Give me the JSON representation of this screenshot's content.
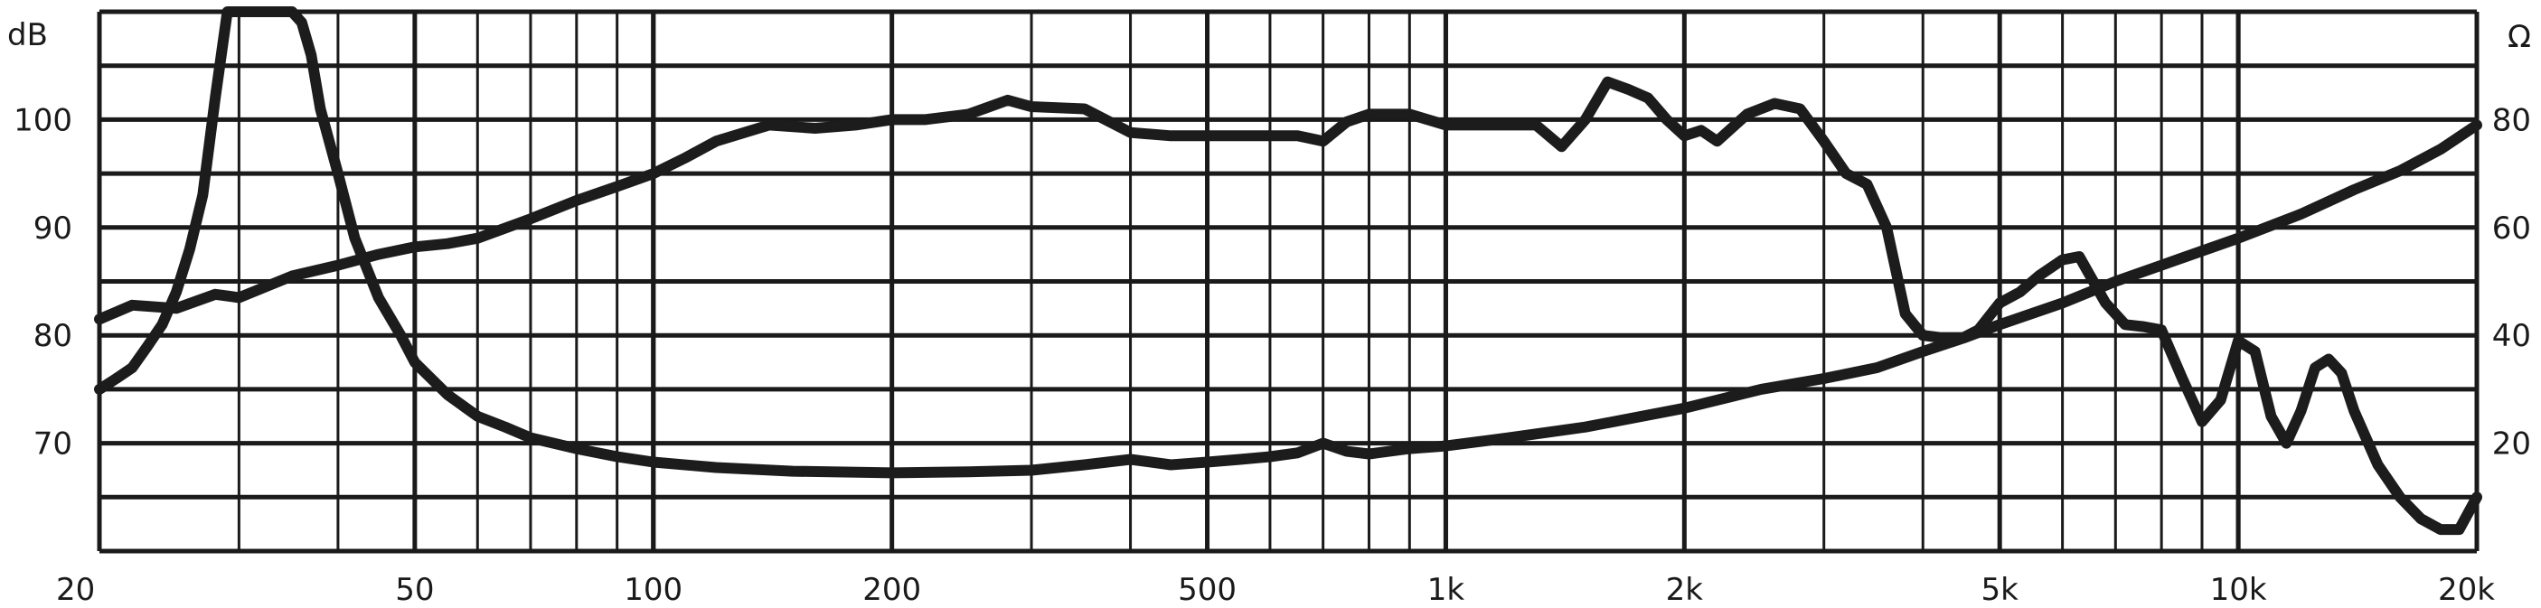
{
  "chart_data": {
    "type": "line",
    "title": "",
    "xlabel": "",
    "x_scale": "log",
    "xlim": [
      20,
      20000
    ],
    "x_ticks": [
      {
        "value": 20,
        "label": "20"
      },
      {
        "value": 50,
        "label": "50"
      },
      {
        "value": 100,
        "label": "100"
      },
      {
        "value": 200,
        "label": "200"
      },
      {
        "value": 500,
        "label": "500"
      },
      {
        "value": 1000,
        "label": "1k"
      },
      {
        "value": 2000,
        "label": "2k"
      },
      {
        "value": 5000,
        "label": "5k"
      },
      {
        "value": 10000,
        "label": "10k"
      },
      {
        "value": 20000,
        "label": "20k"
      }
    ],
    "y_left": {
      "unit": "dB",
      "lim": [
        60,
        110
      ],
      "tick_labels": [
        {
          "value": 70,
          "label": "70"
        },
        {
          "value": 80,
          "label": "80"
        },
        {
          "value": 90,
          "label": "90"
        },
        {
          "value": 100,
          "label": "100"
        }
      ]
    },
    "y_right": {
      "unit": "Ω",
      "lim": [
        0,
        100
      ],
      "tick_labels": [
        {
          "value": 20,
          "label": "20"
        },
        {
          "value": 40,
          "label": "40"
        },
        {
          "value": 60,
          "label": "60"
        },
        {
          "value": 80,
          "label": "80"
        }
      ]
    },
    "grid": true,
    "colors": {
      "line": "#1c1c1c",
      "grid": "#1a1a1a",
      "background": "#ffffff"
    },
    "series": [
      {
        "axis": "left",
        "x": [
          20,
          22,
          25,
          28,
          30,
          35,
          40,
          45,
          50,
          55,
          60,
          70,
          80,
          90,
          100,
          110,
          120,
          140,
          160,
          180,
          200,
          220,
          250,
          280,
          300,
          350,
          400,
          450,
          500,
          550,
          600,
          650,
          700,
          750,
          800,
          900,
          1000,
          1100,
          1200,
          1300,
          1400,
          1500,
          1600,
          1700,
          1800,
          1900,
          2000,
          2100,
          2200,
          2400,
          2600,
          2800,
          3000,
          3200,
          3400,
          3600,
          3800,
          4000,
          4200,
          4500,
          4700,
          5000,
          5300,
          5600,
          6000,
          6300,
          6800,
          7200,
          7600,
          8000,
          8500,
          9000,
          9500,
          10000,
          10500,
          11000,
          11500,
          12000,
          12500,
          13000,
          13500,
          14000,
          15000,
          16000,
          17000,
          18000,
          19000,
          20000
        ],
        "y": [
          81.5,
          82.8,
          82.5,
          83.8,
          83.5,
          85.5,
          86.5,
          87.5,
          88.2,
          88.5,
          89,
          90.8,
          92.5,
          93.8,
          95,
          96.5,
          98,
          99.5,
          99.2,
          99.5,
          100,
          100,
          100.5,
          101.8,
          101.2,
          101,
          98.8,
          98.5,
          98.5,
          98.5,
          98.5,
          98.5,
          98,
          99.8,
          100.5,
          100.5,
          99.5,
          99.5,
          99.5,
          99.5,
          97.5,
          100,
          103.5,
          102.8,
          102,
          100,
          98.5,
          99,
          98,
          100.5,
          101.5,
          101,
          98,
          95,
          94,
          90,
          82,
          80,
          79.8,
          79.8,
          80.5,
          83,
          84,
          85.5,
          87,
          87.3,
          83,
          81,
          80.8,
          80.5,
          76,
          72,
          74,
          79.5,
          78.5,
          72.5,
          70,
          73,
          77,
          77.8,
          76.5,
          73,
          68,
          65,
          63,
          62,
          62,
          65
        ]
      },
      {
        "axis": "right",
        "x": [
          20,
          21,
          22,
          23,
          24,
          25,
          26,
          27,
          28,
          29,
          30,
          32,
          34,
          35,
          36,
          37,
          38,
          40,
          42,
          45,
          48,
          50,
          55,
          60,
          65,
          70,
          80,
          90,
          100,
          120,
          150,
          200,
          250,
          300,
          350,
          400,
          450,
          500,
          550,
          600,
          650,
          700,
          750,
          800,
          900,
          1000,
          1200,
          1500,
          2000,
          2500,
          3000,
          3500,
          4000,
          4500,
          5000,
          6000,
          7000,
          8000,
          10000,
          12000,
          14000,
          16000,
          18000,
          20000
        ],
        "y": [
          30,
          32,
          34,
          38,
          42,
          48,
          56,
          66,
          84,
          100,
          100,
          100,
          100,
          100,
          98,
          92,
          82,
          70,
          58,
          47,
          40,
          35,
          29,
          25,
          23,
          21,
          19,
          17.5,
          16.5,
          15.5,
          14.8,
          14.5,
          14.7,
          15,
          16,
          17,
          16,
          16.5,
          17,
          17.5,
          18.2,
          20,
          18.5,
          18,
          19,
          19.5,
          21,
          23,
          26.5,
          30,
          32,
          34,
          37,
          39.5,
          42,
          46,
          50,
          53,
          58,
          62.5,
          67,
          70.5,
          74.5,
          79
        ]
      }
    ]
  }
}
